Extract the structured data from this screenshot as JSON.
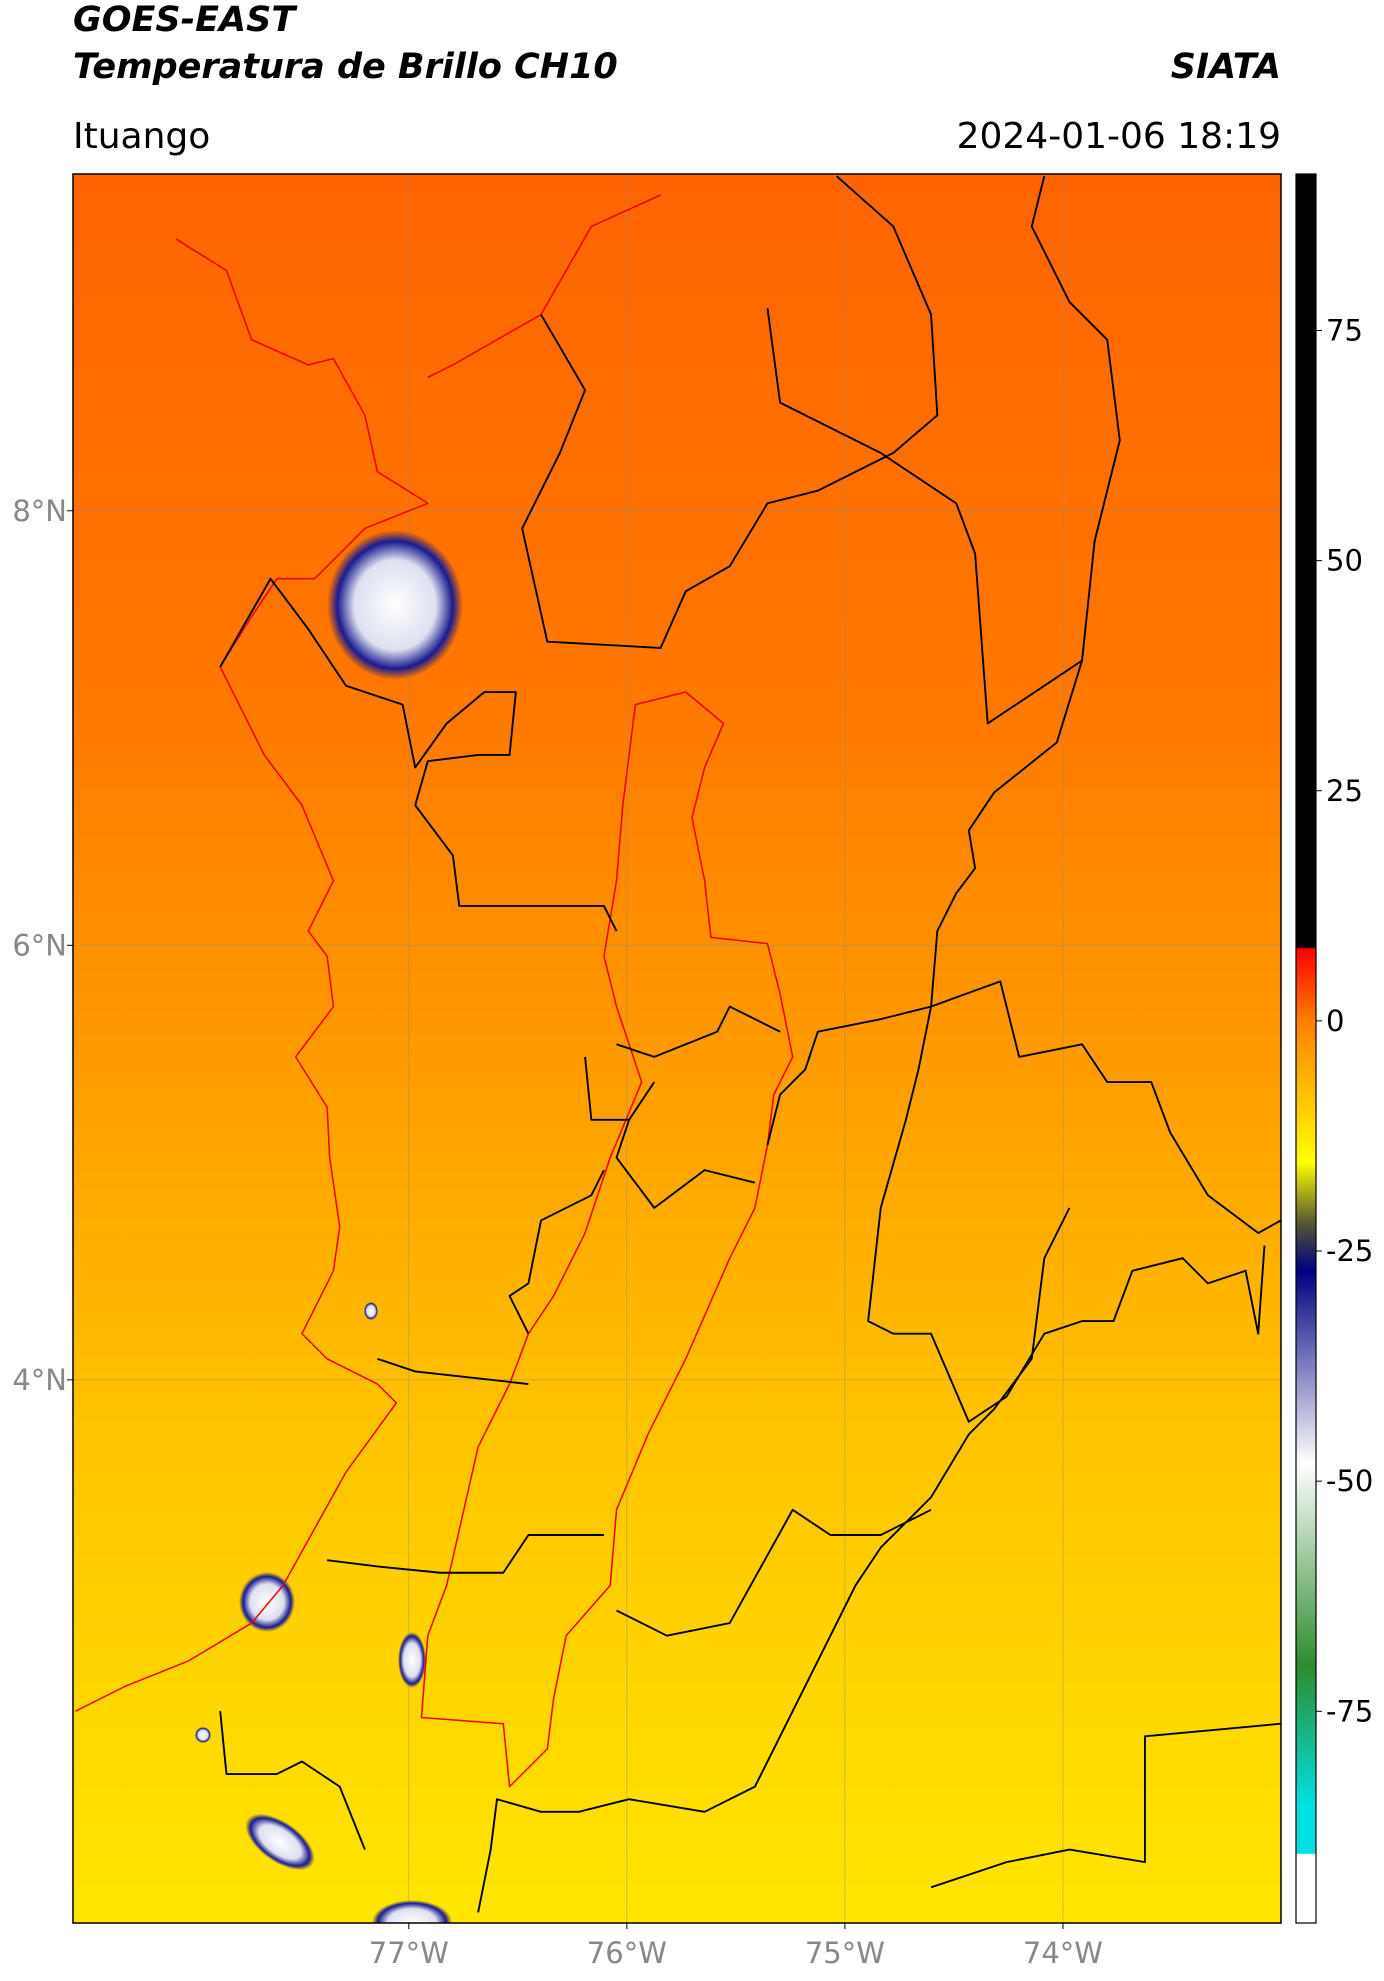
{
  "header": {
    "title": "GOES-EAST",
    "subtitle": "Temperatura de Brillo CH10",
    "source": "SIATA",
    "location": "Ituango",
    "datetime": "2024-01-06 18:19"
  },
  "map": {
    "xlim": [
      -78.54,
      -73.0
    ],
    "ylim": [
      1.5,
      9.55
    ],
    "xticks": [
      {
        "value": -77,
        "label": "77°W"
      },
      {
        "value": -76,
        "label": "76°W"
      },
      {
        "value": -75,
        "label": "75°W"
      },
      {
        "value": -74,
        "label": "74°W"
      }
    ],
    "yticks": [
      {
        "value": 8,
        "label": "8°N"
      },
      {
        "value": 6,
        "label": "6°N"
      },
      {
        "value": 4,
        "label": "4°N"
      }
    ],
    "grid": true
  },
  "colorbar": {
    "lim": [
      -98,
      92
    ],
    "ticks": [
      75,
      50,
      25,
      0,
      -25,
      -50,
      -75
    ]
  }
}
